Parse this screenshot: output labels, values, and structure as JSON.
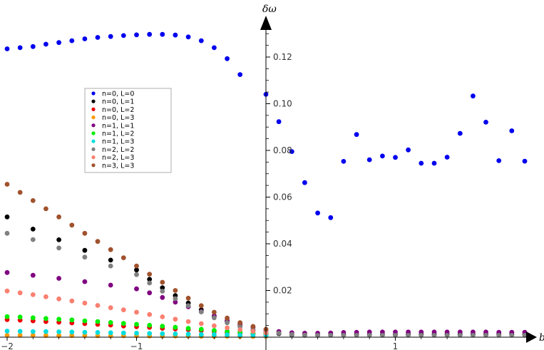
{
  "chart_data": {
    "type": "scatter",
    "xlabel": "b",
    "ylabel": "δω",
    "xlim": [
      -2,
      1.45
    ],
    "ylim": [
      0,
      0.135
    ],
    "x_ticks": [
      -2,
      -1,
      1
    ],
    "x_tick_labels": [
      "−2",
      "−1",
      "1"
    ],
    "y_ticks": [
      0.02,
      0.04,
      0.06,
      0.08,
      0.1,
      0.12
    ],
    "y_tick_labels": [
      "0.02",
      "0.04",
      "0.06",
      "0.08",
      "0.10",
      "0.12"
    ],
    "grid": false,
    "legend_position": "upper-left",
    "series": [
      {
        "name": "n=0, L=0",
        "color": "#0000ee",
        "points": [
          [
            -2.0,
            0.1235
          ],
          [
            -1.9,
            0.124
          ],
          [
            -1.8,
            0.1245
          ],
          [
            -1.7,
            0.1255
          ],
          [
            -1.6,
            0.1262
          ],
          [
            -1.5,
            0.127
          ],
          [
            -1.4,
            0.1278
          ],
          [
            -1.3,
            0.1284
          ],
          [
            -1.2,
            0.1288
          ],
          [
            -1.1,
            0.1292
          ],
          [
            -1.0,
            0.1295
          ],
          [
            -0.9,
            0.1297
          ],
          [
            -0.8,
            0.1297
          ],
          [
            -0.7,
            0.1294
          ],
          [
            -0.6,
            0.1286
          ],
          [
            -0.5,
            0.127
          ],
          [
            -0.4,
            0.124
          ],
          [
            -0.3,
            0.1193
          ],
          [
            -0.2,
            0.1125
          ],
          [
            0.0,
            0.104
          ],
          [
            0.1,
            0.0923
          ],
          [
            0.2,
            0.0795
          ],
          [
            0.3,
            0.0662
          ],
          [
            0.4,
            0.0532
          ],
          [
            0.5,
            0.0512
          ],
          [
            0.6,
            0.0753
          ],
          [
            0.7,
            0.0868
          ],
          [
            0.8,
            0.076
          ],
          [
            0.9,
            0.0776
          ],
          [
            1.0,
            0.077
          ],
          [
            1.1,
            0.0802
          ],
          [
            1.2,
            0.0745
          ],
          [
            1.3,
            0.0745
          ],
          [
            1.4,
            0.0771
          ],
          [
            1.5,
            0.0873
          ],
          [
            1.6,
            0.1033
          ],
          [
            1.7,
            0.0921
          ],
          [
            1.8,
            0.0756
          ],
          [
            1.9,
            0.0884
          ],
          [
            2.0,
            0.0754
          ]
        ]
      },
      {
        "name": "n=0, L=1",
        "color": "#000000",
        "points": [
          [
            -2.0,
            0.0515
          ],
          [
            -1.8,
            0.0463
          ],
          [
            -1.6,
            0.0417
          ],
          [
            -1.4,
            0.0372
          ],
          [
            -1.2,
            0.033
          ],
          [
            -1.0,
            0.0288
          ],
          [
            -0.9,
            0.0248
          ],
          [
            -0.8,
            0.0212
          ],
          [
            -0.7,
            0.0178
          ],
          [
            -0.6,
            0.0146
          ],
          [
            -0.5,
            0.0117
          ],
          [
            -0.4,
            0.009
          ],
          [
            -0.3,
            0.0067
          ],
          [
            -0.2,
            0.0047
          ],
          [
            -0.1,
            0.003
          ],
          [
            0.0,
            0.002
          ],
          [
            0.1,
            0.0015
          ],
          [
            0.2,
            0.001
          ],
          [
            0.3,
            0.0008
          ],
          [
            0.4,
            0.0008
          ],
          [
            0.5,
            0.0009
          ],
          [
            0.6,
            0.001
          ],
          [
            0.7,
            0.0011
          ],
          [
            0.8,
            0.0011
          ],
          [
            0.9,
            0.0011
          ],
          [
            1.0,
            0.0011
          ],
          [
            1.1,
            0.0012
          ],
          [
            1.2,
            0.0012
          ],
          [
            1.3,
            0.0012
          ],
          [
            1.4,
            0.0012
          ],
          [
            1.5,
            0.0012
          ],
          [
            1.6,
            0.0012
          ],
          [
            1.7,
            0.0012
          ],
          [
            1.8,
            0.0012
          ],
          [
            1.9,
            0.0012
          ],
          [
            2.0,
            0.0012
          ]
        ]
      },
      {
        "name": "n=0, L=2",
        "color": "#ee0000",
        "points": [
          [
            -2.0,
            0.0075
          ],
          [
            -1.9,
            0.0073
          ],
          [
            -1.8,
            0.007
          ],
          [
            -1.7,
            0.0067
          ],
          [
            -1.6,
            0.0064
          ],
          [
            -1.5,
            0.0061
          ],
          [
            -1.4,
            0.0058
          ],
          [
            -1.3,
            0.0055
          ],
          [
            -1.2,
            0.0052
          ],
          [
            -1.1,
            0.0048
          ],
          [
            -1.0,
            0.0045
          ],
          [
            -0.9,
            0.0042
          ],
          [
            -0.8,
            0.0038
          ],
          [
            -0.7,
            0.0035
          ],
          [
            -0.6,
            0.0032
          ],
          [
            -0.5,
            0.0028
          ],
          [
            -0.4,
            0.0024
          ],
          [
            -0.3,
            0.002
          ],
          [
            -0.2,
            0.0016
          ],
          [
            -0.1,
            0.0013
          ],
          [
            0.0,
            0.001
          ]
        ]
      },
      {
        "name": "n=0, L=3",
        "color": "#ff9900",
        "points": [
          [
            -2.0,
            0.0008
          ],
          [
            -1.9,
            0.0008
          ],
          [
            -1.8,
            0.0008
          ],
          [
            -1.7,
            0.0007
          ],
          [
            -1.6,
            0.0007
          ],
          [
            -1.5,
            0.0007
          ],
          [
            -1.4,
            0.0007
          ],
          [
            -1.3,
            0.0006
          ],
          [
            -1.2,
            0.0006
          ],
          [
            -1.1,
            0.0006
          ],
          [
            -1.0,
            0.0006
          ],
          [
            -0.9,
            0.0005
          ],
          [
            -0.8,
            0.0005
          ],
          [
            -0.7,
            0.0005
          ],
          [
            -0.6,
            0.0005
          ],
          [
            -0.5,
            0.0004
          ],
          [
            -0.4,
            0.0004
          ],
          [
            -0.3,
            0.0004
          ],
          [
            -0.2,
            0.0003
          ],
          [
            -0.1,
            0.0003
          ],
          [
            0.0,
            0.0003
          ]
        ]
      },
      {
        "name": "n=1, L=1",
        "color": "#800080",
        "points": [
          [
            -2.0,
            0.0277
          ],
          [
            -1.8,
            0.0265
          ],
          [
            -1.6,
            0.0252
          ],
          [
            -1.4,
            0.0238
          ],
          [
            -1.2,
            0.0223
          ],
          [
            -1.0,
            0.0207
          ],
          [
            -0.9,
            0.019
          ],
          [
            -0.8,
            0.017
          ],
          [
            -0.7,
            0.015
          ],
          [
            -0.6,
            0.013
          ],
          [
            -0.5,
            0.011
          ],
          [
            -0.4,
            0.0091
          ],
          [
            -0.3,
            0.0072
          ],
          [
            -0.2,
            0.0056
          ],
          [
            -0.1,
            0.0042
          ],
          [
            0.0,
            0.0031
          ],
          [
            0.1,
            0.0024
          ],
          [
            0.2,
            0.0019
          ],
          [
            0.3,
            0.0017
          ],
          [
            0.4,
            0.0017
          ],
          [
            0.5,
            0.0018
          ],
          [
            0.6,
            0.002
          ],
          [
            0.7,
            0.0021
          ],
          [
            0.8,
            0.0022
          ],
          [
            0.9,
            0.0022
          ],
          [
            1.0,
            0.0022
          ],
          [
            1.1,
            0.0022
          ],
          [
            1.2,
            0.0022
          ],
          [
            1.3,
            0.0022
          ],
          [
            1.4,
            0.0022
          ],
          [
            1.5,
            0.0022
          ],
          [
            1.6,
            0.0022
          ],
          [
            1.7,
            0.0022
          ],
          [
            1.8,
            0.0021
          ],
          [
            1.9,
            0.0021
          ],
          [
            2.0,
            0.0021
          ]
        ]
      },
      {
        "name": "n=1, L=2",
        "color": "#00ee00",
        "points": [
          [
            -2.0,
            0.0088
          ],
          [
            -1.9,
            0.0086
          ],
          [
            -1.8,
            0.0083
          ],
          [
            -1.7,
            0.008
          ],
          [
            -1.6,
            0.0077
          ],
          [
            -1.5,
            0.0074
          ],
          [
            -1.4,
            0.007
          ],
          [
            -1.3,
            0.0067
          ],
          [
            -1.2,
            0.0063
          ],
          [
            -1.1,
            0.0059
          ],
          [
            -1.0,
            0.0055
          ],
          [
            -0.9,
            0.0051
          ],
          [
            -0.8,
            0.0047
          ],
          [
            -0.7,
            0.0042
          ],
          [
            -0.6,
            0.0038
          ],
          [
            -0.5,
            0.0034
          ],
          [
            -0.4,
            0.0029
          ],
          [
            -0.3,
            0.0025
          ],
          [
            -0.2,
            0.0021
          ],
          [
            -0.1,
            0.0017
          ],
          [
            0.0,
            0.0014
          ]
        ]
      },
      {
        "name": "n=1, L=3",
        "color": "#00dddd",
        "points": [
          [
            -2.0,
            0.0026
          ],
          [
            -1.9,
            0.0025
          ],
          [
            -1.8,
            0.0024
          ],
          [
            -1.7,
            0.0024
          ],
          [
            -1.6,
            0.0023
          ],
          [
            -1.5,
            0.0022
          ],
          [
            -1.4,
            0.0021
          ],
          [
            -1.3,
            0.002
          ],
          [
            -1.2,
            0.0019
          ],
          [
            -1.1,
            0.0018
          ],
          [
            -1.0,
            0.0017
          ],
          [
            -0.9,
            0.0016
          ],
          [
            -0.8,
            0.0015
          ],
          [
            -0.7,
            0.0014
          ],
          [
            -0.6,
            0.0013
          ],
          [
            -0.5,
            0.0012
          ],
          [
            -0.4,
            0.0011
          ],
          [
            -0.3,
            0.001
          ],
          [
            -0.2,
            0.0009
          ],
          [
            -0.1,
            0.0008
          ],
          [
            0.0,
            0.0007
          ]
        ]
      },
      {
        "name": "n=2, L=2",
        "color": "#808080",
        "points": [
          [
            -2.0,
            0.0445
          ],
          [
            -1.8,
            0.0418
          ],
          [
            -1.6,
            0.0382
          ],
          [
            -1.4,
            0.0343
          ],
          [
            -1.2,
            0.0305
          ],
          [
            -1.0,
            0.0268
          ],
          [
            -0.9,
            0.0232
          ],
          [
            -0.8,
            0.0197
          ],
          [
            -0.7,
            0.0165
          ],
          [
            -0.6,
            0.0135
          ],
          [
            -0.5,
            0.0108
          ],
          [
            -0.4,
            0.0083
          ],
          [
            -0.3,
            0.0062
          ],
          [
            -0.2,
            0.0045
          ],
          [
            -0.1,
            0.0032
          ],
          [
            0.0,
            0.0023
          ],
          [
            0.1,
            0.0017
          ],
          [
            0.2,
            0.0012
          ],
          [
            0.3,
            0.0009
          ],
          [
            0.4,
            0.0008
          ],
          [
            0.5,
            0.0008
          ],
          [
            0.6,
            0.0008
          ],
          [
            0.7,
            0.0008
          ],
          [
            0.8,
            0.0008
          ],
          [
            0.9,
            0.0008
          ],
          [
            1.0,
            0.0008
          ],
          [
            1.1,
            0.0008
          ],
          [
            1.2,
            0.0008
          ],
          [
            1.3,
            0.0008
          ],
          [
            1.4,
            0.0008
          ],
          [
            1.5,
            0.0008
          ],
          [
            1.6,
            0.0008
          ],
          [
            1.7,
            0.0008
          ],
          [
            1.8,
            0.0008
          ],
          [
            1.9,
            0.0008
          ],
          [
            2.0,
            0.0008
          ]
        ]
      },
      {
        "name": "n=2, L=3",
        "color": "#fa8072",
        "points": [
          [
            -2.0,
            0.0198
          ],
          [
            -1.9,
            0.019
          ],
          [
            -1.8,
            0.0182
          ],
          [
            -1.7,
            0.0173
          ],
          [
            -1.6,
            0.0164
          ],
          [
            -1.5,
            0.0155
          ],
          [
            -1.4,
            0.0146
          ],
          [
            -1.3,
            0.0136
          ],
          [
            -1.2,
            0.0126
          ],
          [
            -1.1,
            0.0117
          ],
          [
            -1.0,
            0.0107
          ],
          [
            -0.9,
            0.0097
          ],
          [
            -0.8,
            0.0087
          ],
          [
            -0.7,
            0.0077
          ],
          [
            -0.6,
            0.0067
          ],
          [
            -0.5,
            0.0058
          ],
          [
            -0.4,
            0.0049
          ],
          [
            -0.3,
            0.004
          ],
          [
            -0.2,
            0.0032
          ],
          [
            -0.1,
            0.0025
          ],
          [
            0.0,
            0.0019
          ]
        ]
      },
      {
        "name": "n=3, L=3",
        "color": "#a0522d",
        "points": [
          [
            -2.0,
            0.0655
          ],
          [
            -1.9,
            0.062
          ],
          [
            -1.8,
            0.0585
          ],
          [
            -1.7,
            0.055
          ],
          [
            -1.6,
            0.0515
          ],
          [
            -1.5,
            0.048
          ],
          [
            -1.4,
            0.0445
          ],
          [
            -1.3,
            0.041
          ],
          [
            -1.2,
            0.0375
          ],
          [
            -1.1,
            0.034
          ],
          [
            -1.0,
            0.0305
          ],
          [
            -0.9,
            0.027
          ],
          [
            -0.8,
            0.0235
          ],
          [
            -0.7,
            0.02
          ],
          [
            -0.6,
            0.0167
          ],
          [
            -0.5,
            0.0135
          ],
          [
            -0.4,
            0.0107
          ],
          [
            -0.3,
            0.0082
          ],
          [
            -0.2,
            0.0062
          ],
          [
            -0.1,
            0.0046
          ],
          [
            0.0,
            0.0034
          ]
        ]
      }
    ]
  }
}
